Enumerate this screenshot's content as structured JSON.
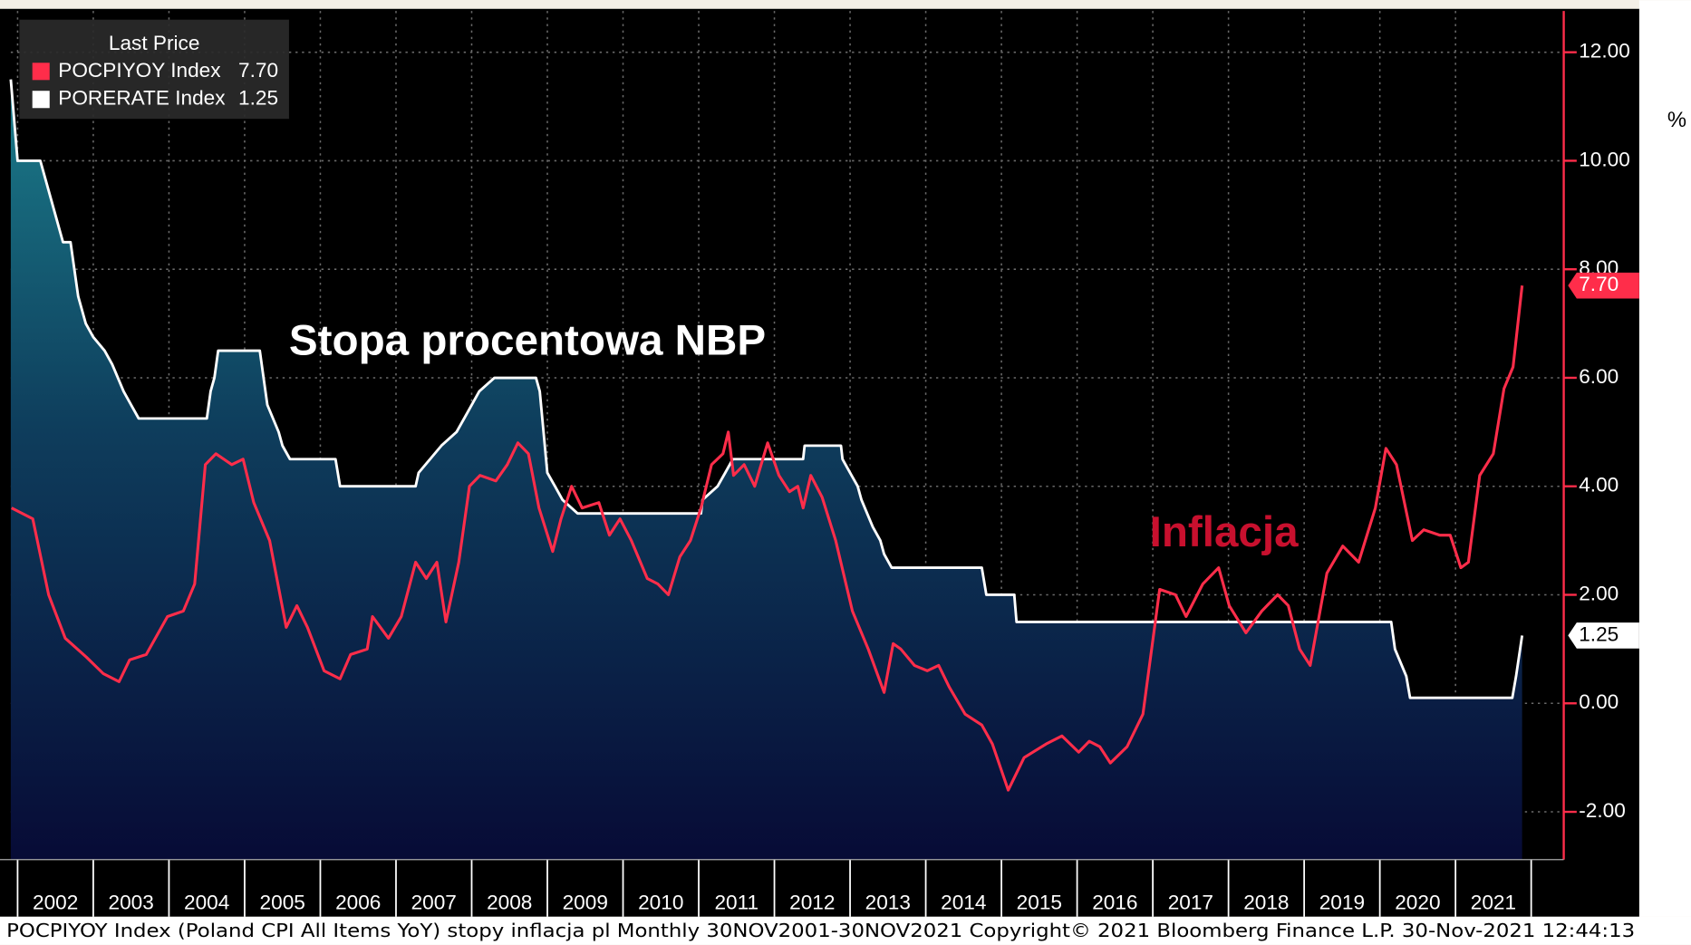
{
  "chart_data": {
    "type": "line",
    "legend_title": "Last Price",
    "annotations": [
      {
        "text": "Stopa procentowa NBP",
        "color": "#ffffff"
      },
      {
        "text": "Inflacja",
        "color": "#c8102e"
      }
    ],
    "y_label": "%",
    "footer": "POCPIYOY Index (Poland CPI All Items YoY) stopy inflacja pl  Monthly 30NOV2001-30NOV2021  Copyright© 2021 Bloomberg Finance L.P.  30-Nov-2021 12:44:13",
    "xlim": [
      2001.91,
      2022.43
    ],
    "xticks": [
      2002,
      2003,
      2004,
      2005,
      2006,
      2007,
      2008,
      2009,
      2010,
      2011,
      2012,
      2013,
      2014,
      2015,
      2016,
      2017,
      2018,
      2019,
      2020,
      2021
    ],
    "ylim": [
      -2.88,
      12.76
    ],
    "yticks": [
      {
        "value": -2,
        "label": "-2.00"
      },
      {
        "value": 0,
        "label": "0.00"
      },
      {
        "value": 2,
        "label": "2.00"
      },
      {
        "value": 4,
        "label": "4.00"
      },
      {
        "value": 6,
        "label": "6.00"
      },
      {
        "value": 8,
        "label": "8.00"
      },
      {
        "value": 10,
        "label": "10.00"
      },
      {
        "value": 12,
        "label": "12.00"
      }
    ],
    "grid": true,
    "legend": "top-left",
    "series": [
      {
        "name": "POCPIYOY Index",
        "color": "#ff2d4a",
        "last_label": "7.70",
        "x": [
          2001.92,
          2002.2,
          2002.41,
          2002.63,
          2002.91,
          2003.13,
          2003.34,
          2003.48,
          2003.7,
          2003.98,
          2004.19,
          2004.34,
          2004.48,
          2004.62,
          2004.83,
          2004.98,
          2005.12,
          2005.33,
          2005.55,
          2005.69,
          2005.83,
          2006.05,
          2006.26,
          2006.4,
          2006.62,
          2006.69,
          2006.9,
          2007.07,
          2007.26,
          2007.4,
          2007.54,
          2007.66,
          2007.83,
          2007.97,
          2008.11,
          2008.32,
          2008.47,
          2008.61,
          2008.75,
          2008.89,
          2009.07,
          2009.18,
          2009.32,
          2009.46,
          2009.68,
          2009.82,
          2009.96,
          2010.11,
          2010.32,
          2010.46,
          2010.6,
          2010.75,
          2010.89,
          2011.03,
          2011.17,
          2011.32,
          2011.39,
          2011.46,
          2011.6,
          2011.74,
          2011.91,
          2012.06,
          2012.2,
          2012.31,
          2012.38,
          2012.48,
          2012.63,
          2012.81,
          2013.03,
          2013.24,
          2013.45,
          2013.57,
          2013.67,
          2013.85,
          2014.02,
          2014.17,
          2014.31,
          2014.52,
          2014.74,
          2014.88,
          2015.09,
          2015.3,
          2015.59,
          2015.8,
          2016.02,
          2016.16,
          2016.3,
          2016.44,
          2016.66,
          2016.87,
          2017.09,
          2017.3,
          2017.44,
          2017.66,
          2017.87,
          2018.01,
          2018.23,
          2018.44,
          2018.65,
          2018.79,
          2018.94,
          2019.08,
          2019.3,
          2019.51,
          2019.72,
          2019.94,
          2020.08,
          2020.22,
          2020.43,
          2020.58,
          2020.79,
          2020.93,
          2021.07,
          2021.17,
          2021.32,
          2021.5,
          2021.64,
          2021.76,
          2021.88
        ],
        "values": [
          3.6,
          3.4,
          2.0,
          1.2,
          0.85,
          0.55,
          0.4,
          0.8,
          0.9,
          1.6,
          1.7,
          2.2,
          4.4,
          4.6,
          4.4,
          4.5,
          3.7,
          3.0,
          1.4,
          1.8,
          1.4,
          0.6,
          0.45,
          0.9,
          1.0,
          1.6,
          1.2,
          1.6,
          2.6,
          2.3,
          2.6,
          1.5,
          2.6,
          4.0,
          4.2,
          4.1,
          4.4,
          4.8,
          4.6,
          3.6,
          2.8,
          3.4,
          4.0,
          3.6,
          3.7,
          3.1,
          3.4,
          3.0,
          2.3,
          2.2,
          2.0,
          2.7,
          3.0,
          3.6,
          4.4,
          4.6,
          5.0,
          4.2,
          4.4,
          4.0,
          4.8,
          4.2,
          3.9,
          4.0,
          3.6,
          4.2,
          3.8,
          3.0,
          1.7,
          1.0,
          0.2,
          1.1,
          1.0,
          0.7,
          0.6,
          0.7,
          0.3,
          -0.2,
          -0.4,
          -0.75,
          -1.6,
          -1.0,
          -0.75,
          -0.6,
          -0.9,
          -0.7,
          -0.8,
          -1.1,
          -0.8,
          -0.2,
          2.1,
          2.0,
          1.6,
          2.2,
          2.5,
          1.8,
          1.3,
          1.7,
          2.0,
          1.8,
          1.0,
          0.7,
          2.4,
          2.9,
          2.6,
          3.6,
          4.7,
          4.4,
          3.0,
          3.2,
          3.1,
          3.1,
          2.5,
          2.6,
          4.2,
          4.6,
          5.8,
          6.2,
          7.7
        ]
      },
      {
        "name": "PORERATE Index",
        "color": "#ffffff",
        "last_label": "1.25",
        "x": [
          2001.91,
          2002.0,
          2002.3,
          2002.4,
          2002.5,
          2002.6,
          2002.7,
          2002.8,
          2002.9,
          2003.0,
          2003.15,
          2003.25,
          2003.4,
          2003.5,
          2003.6,
          2004.5,
          2004.55,
          2004.6,
          2004.65,
          2005.2,
          2005.25,
          2005.3,
          2005.45,
          2005.5,
          2005.6,
          2006.2,
          2006.26,
          2007.26,
          2007.3,
          2007.45,
          2007.6,
          2007.8,
          2007.9,
          2008.0,
          2008.1,
          2008.3,
          2008.85,
          2008.9,
          2008.95,
          2009.0,
          2009.1,
          2009.2,
          2009.4,
          2011.03,
          2011.05,
          2011.25,
          2011.35,
          2011.45,
          2012.38,
          2012.4,
          2012.88,
          2012.9,
          2013.0,
          2013.1,
          2013.15,
          2013.3,
          2013.4,
          2013.45,
          2013.55,
          2014.74,
          2014.8,
          2015.17,
          2015.2,
          2020.15,
          2020.2,
          2020.35,
          2020.4,
          2021.75,
          2021.8,
          2021.88
        ],
        "values": [
          11.5,
          10.0,
          10.0,
          9.5,
          9.0,
          8.5,
          8.5,
          7.5,
          7.0,
          6.75,
          6.5,
          6.25,
          5.75,
          5.5,
          5.25,
          5.25,
          5.75,
          6.0,
          6.5,
          6.5,
          6.0,
          5.5,
          5.0,
          4.75,
          4.5,
          4.5,
          4.0,
          4.0,
          4.25,
          4.5,
          4.75,
          5.0,
          5.25,
          5.5,
          5.75,
          6.0,
          6.0,
          5.75,
          5.0,
          4.25,
          4.0,
          3.75,
          3.5,
          3.5,
          3.75,
          4.0,
          4.25,
          4.5,
          4.5,
          4.75,
          4.75,
          4.5,
          4.25,
          4.0,
          3.75,
          3.25,
          3.0,
          2.75,
          2.5,
          2.5,
          2.0,
          2.0,
          1.5,
          1.5,
          1.0,
          0.5,
          0.1,
          0.1,
          0.5,
          1.25
        ]
      }
    ]
  }
}
